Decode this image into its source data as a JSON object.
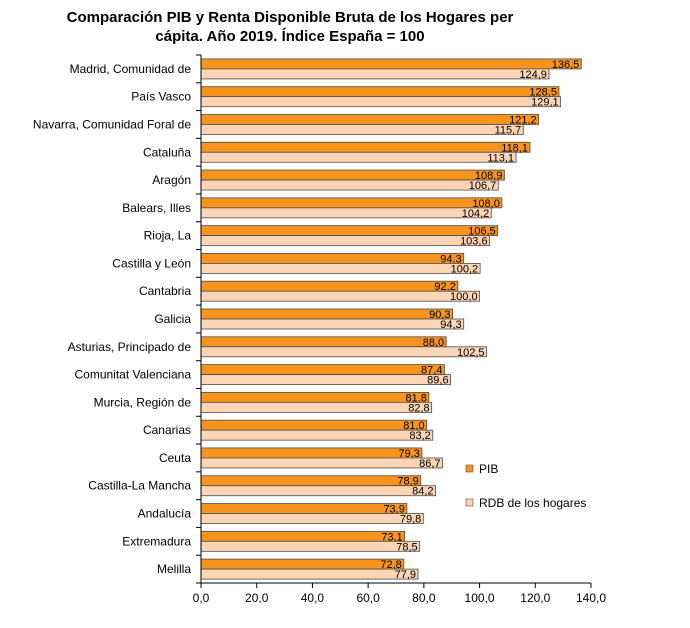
{
  "chart_data": {
    "type": "bar",
    "orientation": "horizontal",
    "title_lines": [
      "Comparación PIB y Renta Disponible Bruta de los Hogares  per",
      "cápita. Año 2019. Índice España = 100"
    ],
    "categories": [
      "Madrid, Comunidad de",
      "País Vasco",
      "Navarra, Comunidad Foral de",
      "Cataluña",
      "Aragón",
      "Balears, Illes",
      "Rioja, La",
      "Castilla y León",
      "Cantabria",
      "Galicia",
      "Asturias, Principado de",
      "Comunitat Valenciana",
      "Murcia, Región de",
      "Canarias",
      "Ceuta",
      "Castilla-La Mancha",
      "Andalucía",
      "Extremadura",
      "Melilla"
    ],
    "series": [
      {
        "name": "PIB",
        "color": "#F7941D",
        "values": [
          136.5,
          128.5,
          121.2,
          118.1,
          108.9,
          108.0,
          106.5,
          94.3,
          92.2,
          90.3,
          88.0,
          87.4,
          81.8,
          81.0,
          79.3,
          78.9,
          73.9,
          73.1,
          72.8
        ],
        "labels": [
          "136,5",
          "128,5",
          "121,2",
          "118,1",
          "108,9",
          "108,0",
          "106,5",
          "94,3",
          "92,2",
          "90,3",
          "88,0",
          "87,4",
          "81,8",
          "81,0",
          "79,3",
          "78,9",
          "73,9",
          "73,1",
          "72,8"
        ]
      },
      {
        "name": "RDB de los hogares",
        "color": "#FBD5B5",
        "values": [
          124.9,
          129.1,
          115.7,
          113.1,
          106.7,
          104.2,
          103.6,
          100.2,
          100.0,
          94.3,
          102.5,
          89.6,
          82.8,
          83.2,
          86.7,
          84.2,
          79.8,
          78.5,
          77.9
        ],
        "labels": [
          "124,9",
          "129,1",
          "115,7",
          "113,1",
          "106,7",
          "104,2",
          "103,6",
          "100,2",
          "100,0",
          "94,3",
          "102,5",
          "89,6",
          "82,8",
          "83,2",
          "86,7",
          "84,2",
          "79,8",
          "78,5",
          "77,9"
        ]
      }
    ],
    "xlim": [
      0,
      140
    ],
    "x_ticks": [
      "0,0",
      "20,0",
      "40,0",
      "60,0",
      "80,0",
      "100,0",
      "120,0",
      "140,0"
    ],
    "grid": false,
    "legend_position": "right"
  }
}
